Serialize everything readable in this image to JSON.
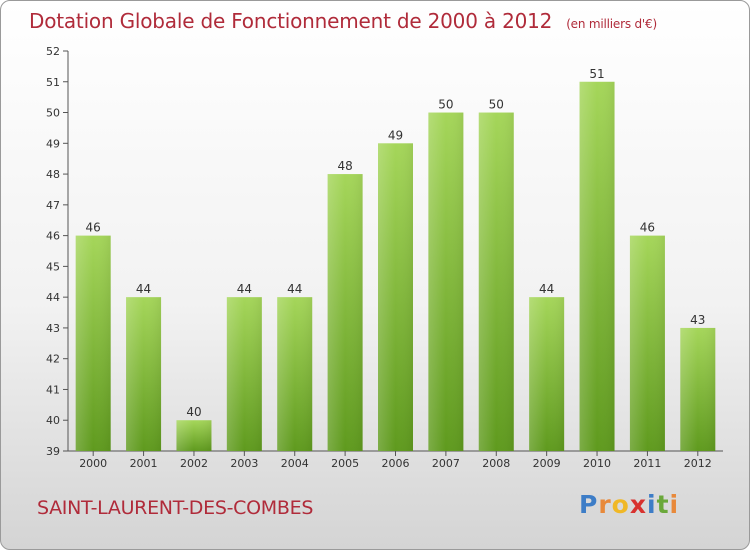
{
  "title": "Dotation Globale de Fonctionnement de 2000 à 2012",
  "subtitle": "(en milliers d'€)",
  "commune": "SAINT-LAURENT-DES-COMBES",
  "logo": {
    "letters": [
      "P",
      "r",
      "o",
      "x",
      "i",
      "t",
      "i"
    ],
    "colors": [
      "#3d7dc7",
      "#e8893a",
      "#f0b826",
      "#d8322f",
      "#3d7dc7",
      "#6aa83a",
      "#e8893a"
    ]
  },
  "colors": {
    "bar": "#7cb82f",
    "bar_light": "#a5d65a",
    "bar_dark": "#5f9a1e",
    "title": "#b02b3a"
  },
  "chart_data": {
    "type": "bar",
    "categories": [
      "2000",
      "2001",
      "2002",
      "2003",
      "2004",
      "2005",
      "2006",
      "2007",
      "2008",
      "2009",
      "2010",
      "2011",
      "2012"
    ],
    "values": [
      46,
      44,
      40,
      44,
      44,
      48,
      49,
      50,
      50,
      44,
      51,
      46,
      43
    ],
    "title": "Dotation Globale de Fonctionnement de 2000 à 2012",
    "subtitle": "(en milliers d'€)",
    "ylim": [
      39,
      52
    ],
    "yticks": [
      39,
      40,
      41,
      42,
      43,
      44,
      45,
      46,
      47,
      48,
      49,
      50,
      51,
      52
    ],
    "grid": false
  }
}
